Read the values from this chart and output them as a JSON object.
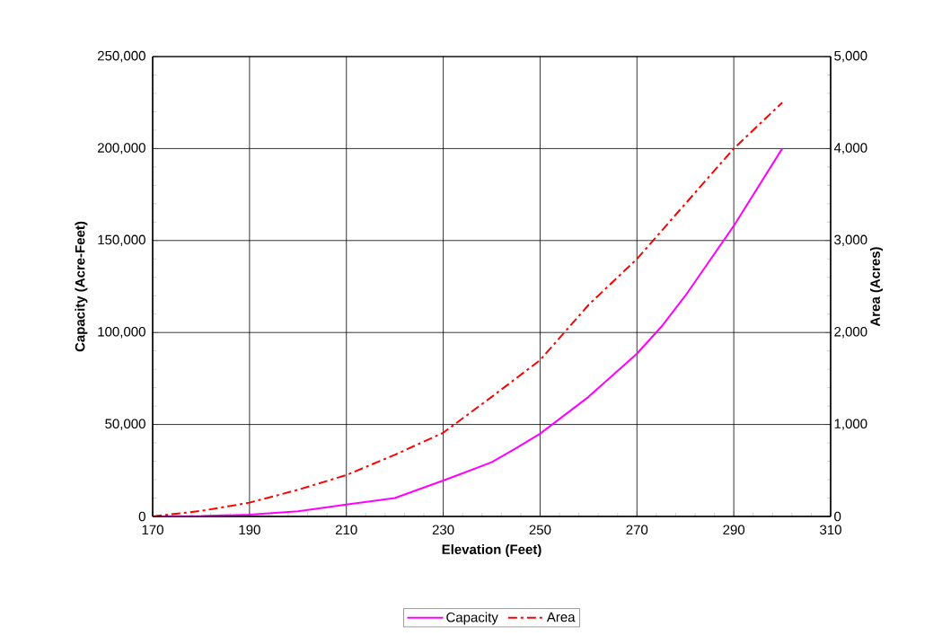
{
  "chart_data": {
    "type": "line",
    "xlabel": "Elevation (Feet)",
    "ylabel": "Capacity (Acre-Feet)",
    "y2label": "Area (Acres)",
    "xlim": [
      170,
      310
    ],
    "xticks": [
      170,
      190,
      210,
      230,
      250,
      270,
      290,
      310
    ],
    "ylim": [
      0,
      250000
    ],
    "yticks": [
      0,
      {
        "value": 50000,
        "label": "50,000"
      },
      {
        "value": 100000,
        "label": "100,000"
      },
      {
        "value": 150000,
        "label": "150,000"
      },
      {
        "value": 200000,
        "label": "200,000"
      },
      {
        "value": 250000,
        "label": "250,000"
      }
    ],
    "y2lim": [
      0,
      5000
    ],
    "y2ticks": [
      0,
      {
        "value": 1000,
        "label": "1,000"
      },
      {
        "value": 2000,
        "label": "2,000"
      },
      {
        "value": 3000,
        "label": "3,000"
      },
      {
        "value": 4000,
        "label": "4,000"
      },
      {
        "value": 5000,
        "label": "5,000"
      }
    ],
    "grid": true,
    "legend": "bottom",
    "marker": "none",
    "series": [
      {
        "name": "Capacity",
        "color": "#ff00ff",
        "line_style": "solid",
        "x": [
          170,
          180,
          190,
          200,
          210,
          220,
          230,
          240,
          245,
          250,
          260,
          270,
          275,
          280,
          290,
          300
        ],
        "values": [
          0,
          200,
          1000,
          2800,
          6500,
          10000,
          19500,
          29500,
          37000,
          45000,
          65000,
          88500,
          103000,
          120000,
          158000,
          200000
        ]
      },
      {
        "name": "Area",
        "color": "#ff0000",
        "axis": "y2",
        "line_style": "dashdot",
        "x": [
          170,
          180,
          190,
          200,
          210,
          220,
          230,
          240,
          245,
          250,
          260,
          270,
          280,
          290,
          300
        ],
        "values": [
          0,
          60,
          150,
          290,
          450,
          670,
          910,
          1300,
          1500,
          1700,
          2300,
          2800,
          3400,
          4000,
          4500
        ]
      }
    ]
  }
}
